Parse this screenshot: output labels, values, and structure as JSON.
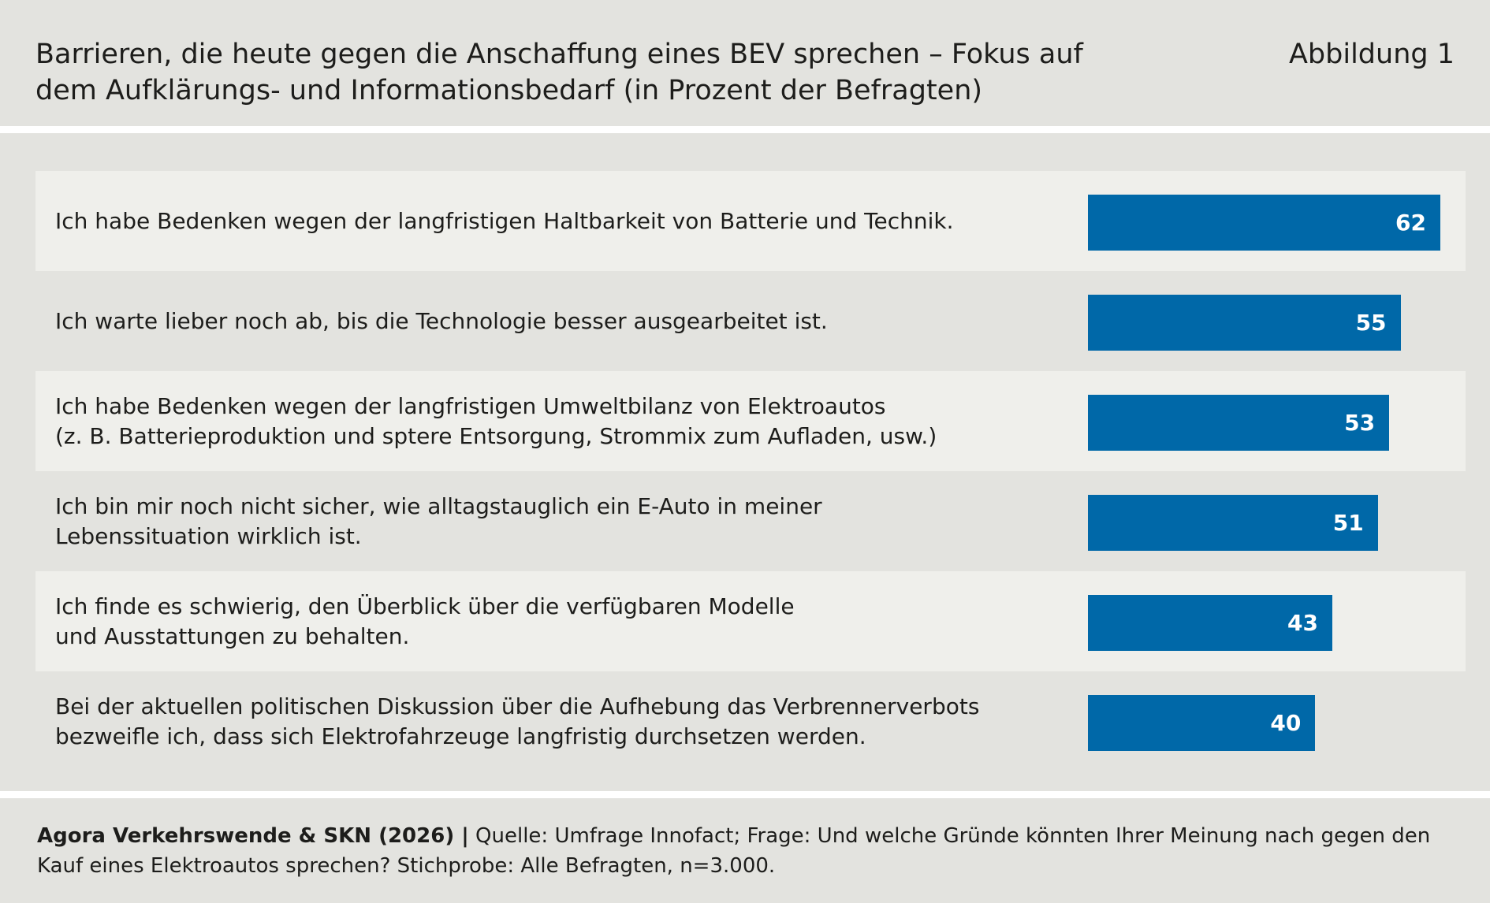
{
  "header": {
    "title": "Barrieren, die heute gegen die Anschaffung eines BEV sprechen – Fokus auf\ndem Aufklärungs- und Informationsbedarf (in Prozent der Befragten)",
    "figure_label": "Abbildung 1"
  },
  "chart_data": {
    "type": "bar",
    "orientation": "horizontal",
    "categories": [
      "Ich habe Bedenken wegen der langfristigen Haltbarkeit von Batterie und Technik.",
      "Ich warte lieber noch ab, bis die Technologie besser ausgearbeitet ist.",
      "Ich habe Bedenken wegen der langfristigen Umweltbilanz von Elektroautos\n(z. B. Batterieproduktion und sptere Entsorgung, Strommix zum Aufladen, usw.)",
      "Ich bin mir noch nicht sicher, wie alltagstauglich ein E-Auto in meiner\nLebenssituation wirklich ist.",
      "Ich finde es schwierig, den Überblick über die verfügbaren Modelle\nund Ausstattungen zu behalten.",
      "Bei der aktuellen politischen Diskussion über die Aufhebung das Verbrennerverbots\nbezweifle ich, dass sich Elektrofahrzeuge langfristig durchsetzen werden."
    ],
    "values": [
      62,
      55,
      53,
      51,
      43,
      40
    ],
    "color": "#0068a8"
  },
  "footer": {
    "credit": "Agora Verkehrswende & SKN (2026) |",
    "source": "Quelle: Umfrage Innofact; Frage: Und welche Gründe könnten Ihrer Meinung nach gegen den Kauf eines Elektroautos sprechen? Stichprobe: Alle Befragten, n=3.000."
  }
}
